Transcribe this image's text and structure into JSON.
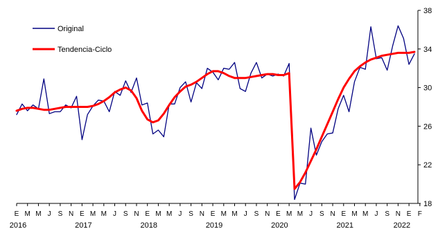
{
  "chart_data": {
    "type": "line",
    "ylim": [
      18,
      38
    ],
    "y_ticks": [
      18,
      22,
      26,
      30,
      34,
      38
    ],
    "y_axis_side": "right",
    "grid": false,
    "legend_position": "top-left",
    "x_tick_labels": [
      "E",
      "M",
      "M",
      "J",
      "S",
      "N",
      "E",
      "M",
      "M",
      "J",
      "S",
      "N",
      "E",
      "M",
      "M",
      "J",
      "S",
      "N",
      "E",
      "M",
      "M",
      "J",
      "S",
      "N",
      "E",
      "M",
      "M",
      "J",
      "S",
      "N",
      "E",
      "M",
      "M",
      "J",
      "S",
      "N",
      "E",
      "F"
    ],
    "years": [
      {
        "label": "2016",
        "month_index": 0
      },
      {
        "label": "2017",
        "month_index": 12
      },
      {
        "label": "2018",
        "month_index": 24
      },
      {
        "label": "2019",
        "month_index": 36
      },
      {
        "label": "2020",
        "month_index": 48
      },
      {
        "label": "2021",
        "month_index": 60
      },
      {
        "label": "2022",
        "month_index": 72
      }
    ],
    "series": [
      {
        "name": "Original",
        "color": "#000080",
        "values": [
          27.2,
          28.3,
          27.6,
          28.2,
          27.8,
          30.9,
          27.3,
          27.5,
          27.5,
          28.2,
          27.9,
          29.1,
          24.6,
          27.2,
          28.1,
          28.7,
          28.6,
          27.5,
          29.6,
          29.2,
          30.7,
          29.5,
          31.0,
          28.2,
          28.4,
          25.2,
          25.6,
          24.9,
          28.3,
          28.3,
          30.0,
          30.6,
          28.5,
          30.5,
          29.9,
          32.0,
          31.6,
          30.8,
          32.0,
          31.9,
          32.6,
          29.9,
          29.6,
          31.5,
          32.6,
          31.0,
          31.4,
          31.2,
          31.4,
          31.2,
          32.5,
          18.4,
          20.1,
          20.0,
          25.8,
          23.0,
          24.4,
          25.2,
          25.3,
          27.8,
          29.2,
          27.5,
          30.6,
          32.1,
          31.9,
          36.3,
          33.0,
          33.1,
          31.8,
          34.3,
          36.4,
          35.1,
          32.4,
          33.5
        ]
      },
      {
        "name": "Tendencia-Ciclo",
        "color": "#ff0000",
        "values": [
          27.6,
          27.8,
          27.9,
          27.9,
          27.8,
          27.7,
          27.7,
          27.8,
          27.9,
          28.0,
          28.0,
          28.0,
          28.0,
          28.0,
          28.1,
          28.3,
          28.6,
          29.0,
          29.5,
          29.8,
          30.0,
          29.7,
          28.9,
          27.6,
          26.7,
          26.4,
          26.6,
          27.3,
          28.2,
          29.0,
          29.6,
          30.1,
          30.3,
          30.6,
          31.0,
          31.4,
          31.7,
          31.7,
          31.5,
          31.2,
          31.0,
          31.0,
          31.0,
          31.1,
          31.2,
          31.3,
          31.4,
          31.4,
          31.3,
          31.3,
          31.5,
          19.5,
          20.2,
          21.2,
          22.4,
          23.6,
          24.9,
          26.2,
          27.5,
          28.8,
          30.0,
          30.9,
          31.7,
          32.2,
          32.6,
          32.9,
          33.1,
          33.3,
          33.4,
          33.5,
          33.6,
          33.6,
          33.6,
          33.7
        ]
      }
    ]
  }
}
